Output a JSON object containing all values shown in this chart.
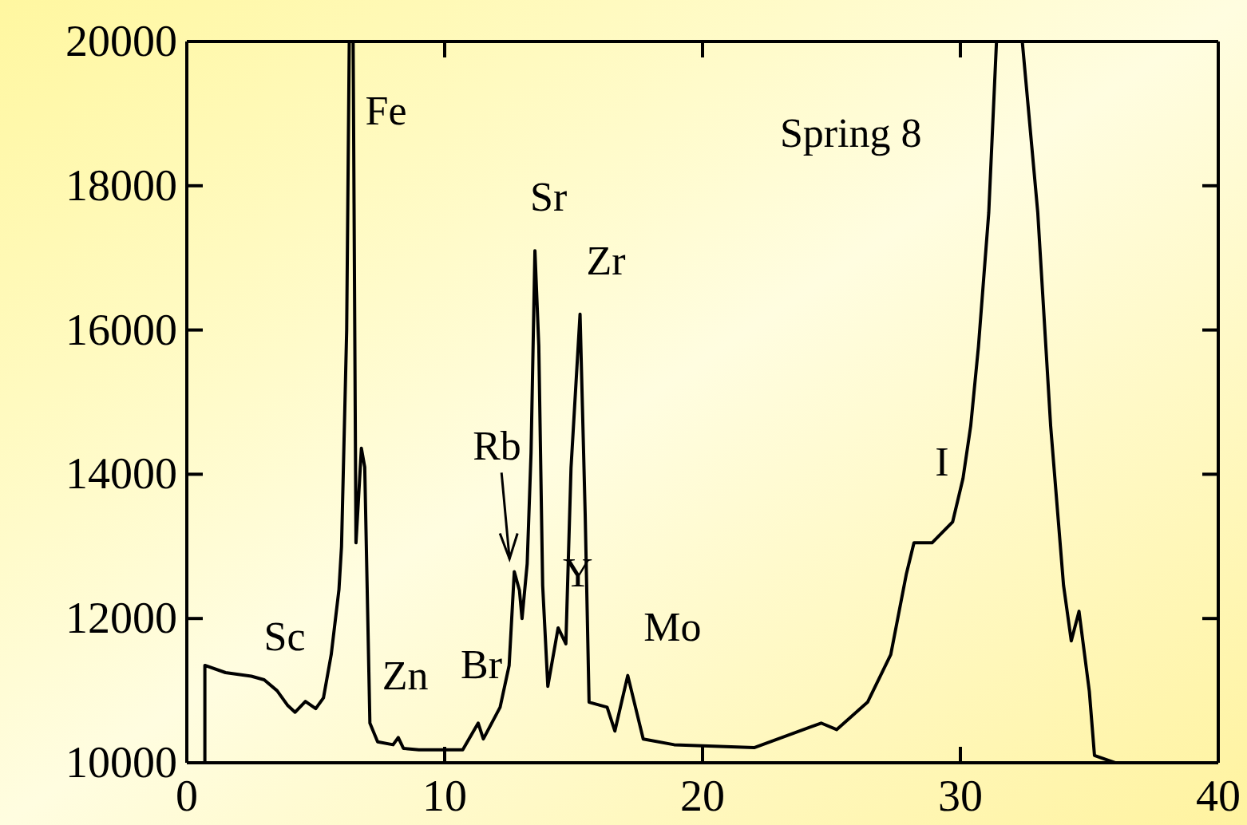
{
  "chart_data": {
    "type": "line",
    "xlim": [
      0,
      40
    ],
    "xticks": [
      0,
      10,
      20,
      30,
      40
    ],
    "ylim": [
      10000,
      20000
    ],
    "yticks": [
      10000,
      12000,
      14000,
      16000,
      18000,
      20000
    ],
    "grid": false,
    "marker": "none",
    "line_style": "solid",
    "series": [
      {
        "color": "#000000",
        "x": [
          0.7,
          0.7,
          1.5,
          2.5,
          3.0,
          3.5,
          3.9,
          4.2,
          4.6,
          4.8,
          5.0,
          5.3,
          5.6,
          5.9,
          6.0,
          6.1,
          6.2,
          6.3,
          6.45,
          6.56,
          6.77,
          6.9,
          7.1,
          7.4,
          8.0,
          8.2,
          8.4,
          9.0,
          10.7,
          11.3,
          11.5,
          12.15,
          12.5,
          12.7,
          12.9,
          13.0,
          13.2,
          13.35,
          13.5,
          13.65,
          13.8,
          14.0,
          14.4,
          14.7,
          14.9,
          15.25,
          15.45,
          15.6,
          16.3,
          16.6,
          17.1,
          17.7,
          18.9,
          22.0,
          24.6,
          25.2,
          26.4,
          27.3,
          27.9,
          28.2,
          28.9,
          29.7,
          30.1,
          30.4,
          30.7,
          31.1,
          31.4,
          32.4,
          33.0,
          33.5,
          34.0,
          34.3,
          34.6,
          35.0,
          35.2,
          36.0,
          40
        ],
        "values": [
          10000,
          11350,
          11250,
          11200,
          11150,
          11000,
          10800,
          10700,
          10850,
          10800,
          10750,
          10900,
          11500,
          12400,
          13000,
          14500,
          16000,
          20000,
          20000,
          13050,
          14360,
          14100,
          10550,
          10290,
          10250,
          10350,
          10200,
          10180,
          10180,
          10550,
          10330,
          10770,
          11350,
          12650,
          12390,
          12000,
          12760,
          14300,
          17100,
          15780,
          12460,
          11060,
          11870,
          11650,
          14090,
          16220,
          13430,
          10840,
          10770,
          10440,
          11210,
          10330,
          10250,
          10210,
          10550,
          10460,
          10840,
          11500,
          12610,
          13050,
          13050,
          13340,
          13940,
          14670,
          15770,
          17630,
          20000,
          20000,
          17630,
          14670,
          12460,
          11690,
          12100,
          10990,
          10100,
          10000,
          10000
        ]
      }
    ],
    "annotations": [
      {
        "text": "Sc",
        "x": 4.6,
        "y": 10850
      },
      {
        "text": "Fe",
        "x": 6.3,
        "y": 20000
      },
      {
        "text": "Zn",
        "x": 8.2,
        "y": 10350
      },
      {
        "text": "Br",
        "x": 11.3,
        "y": 10550
      },
      {
        "text": "Rb",
        "x": 12.7,
        "y": 12650
      },
      {
        "text": "Sr",
        "x": 13.5,
        "y": 17100
      },
      {
        "text": "Zr",
        "x": 15.25,
        "y": 16220
      },
      {
        "text": "Y",
        "x": 14.4,
        "y": 11870
      },
      {
        "text": "Mo",
        "x": 17.1,
        "y": 11210
      },
      {
        "text": "I",
        "x": 29.7,
        "y": 13340
      },
      "Spring 8"
    ]
  }
}
